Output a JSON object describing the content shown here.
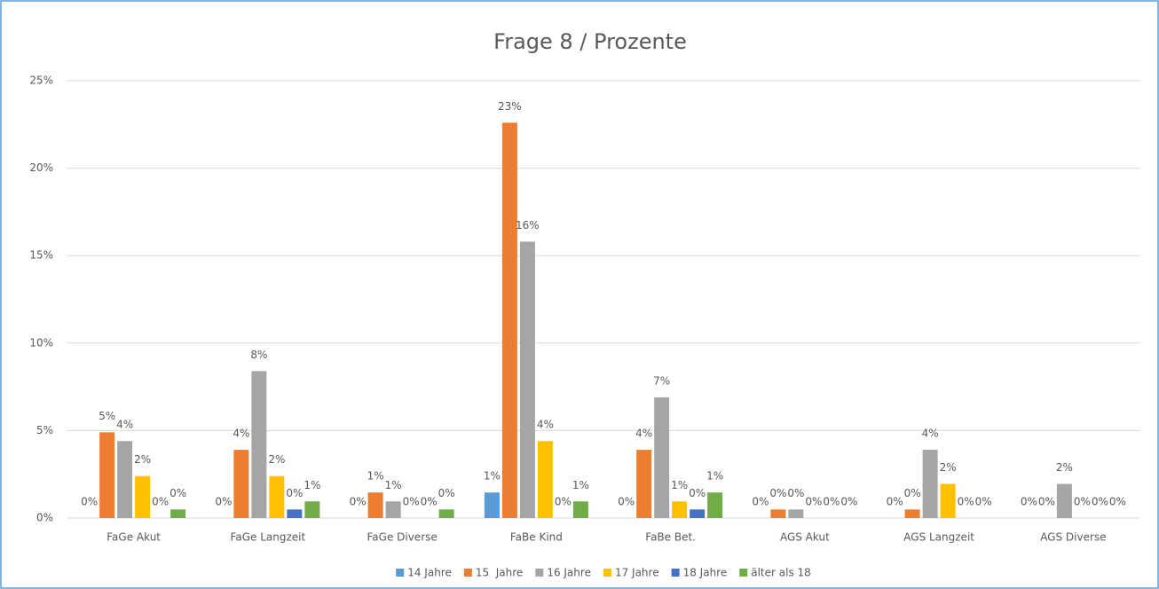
{
  "chart_data": {
    "type": "bar",
    "title": "Frage 8 / Prozente",
    "categories": [
      "FaGe Akut",
      "FaGe Langzeit",
      "FaGe Diverse",
      "FaBe Kind",
      "FaBe Bet.",
      "AGS Akut",
      "AGS Langzeit",
      "AGS Diverse"
    ],
    "series": [
      {
        "name": "14 Jahre",
        "color": "#5b9bd5",
        "values": [
          0,
          0,
          0,
          1.46,
          0,
          0,
          0,
          0
        ],
        "value_labels": [
          "0%",
          "0%",
          "0%",
          "1%",
          "0%",
          "0%",
          "0%",
          "0%"
        ]
      },
      {
        "name": "15  Jahre",
        "color": "#ed7d31",
        "values": [
          4.9,
          3.9,
          1.46,
          22.6,
          3.9,
          0.49,
          0.49,
          0
        ],
        "value_labels": [
          "5%",
          "4%",
          "1%",
          "23%",
          "4%",
          "0%",
          "0%",
          "0%"
        ]
      },
      {
        "name": "16 Jahre",
        "color": "#a5a5a5",
        "values": [
          4.4,
          8.4,
          0.95,
          15.8,
          6.9,
          0.49,
          3.9,
          1.95
        ],
        "value_labels": [
          "4%",
          "8%",
          "1%",
          "16%",
          "7%",
          "0%",
          "4%",
          "2%"
        ]
      },
      {
        "name": "17 Jahre",
        "color": "#ffc000",
        "values": [
          2.4,
          2.4,
          0,
          4.4,
          0.95,
          0,
          1.95,
          0
        ],
        "value_labels": [
          "2%",
          "2%",
          "0%",
          "4%",
          "1%",
          "0%",
          "2%",
          "0%"
        ]
      },
      {
        "name": "18 Jahre",
        "color": "#4472c4",
        "values": [
          0,
          0.49,
          0,
          0,
          0.49,
          0,
          0,
          0
        ],
        "value_labels": [
          "0%",
          "0%",
          "0%",
          "0%",
          "0%",
          "0%",
          "0%",
          "0%"
        ]
      },
      {
        "name": "älter als 18",
        "color": "#70ad47",
        "values": [
          0.49,
          0.95,
          0.49,
          0.95,
          1.46,
          0,
          0,
          0
        ],
        "value_labels": [
          "0%",
          "1%",
          "0%",
          "1%",
          "1%",
          "0%",
          "0%",
          "0%"
        ]
      }
    ],
    "ylim": [
      0,
      25
    ],
    "yticks": [
      {
        "value": 0,
        "label": "0%"
      },
      {
        "value": 5,
        "label": "5%"
      },
      {
        "value": 10,
        "label": "10%"
      },
      {
        "value": 15,
        "label": "15%"
      },
      {
        "value": 20,
        "label": "20%"
      },
      {
        "value": 25,
        "label": "25%"
      }
    ],
    "grid": true,
    "legend": "bottom"
  }
}
